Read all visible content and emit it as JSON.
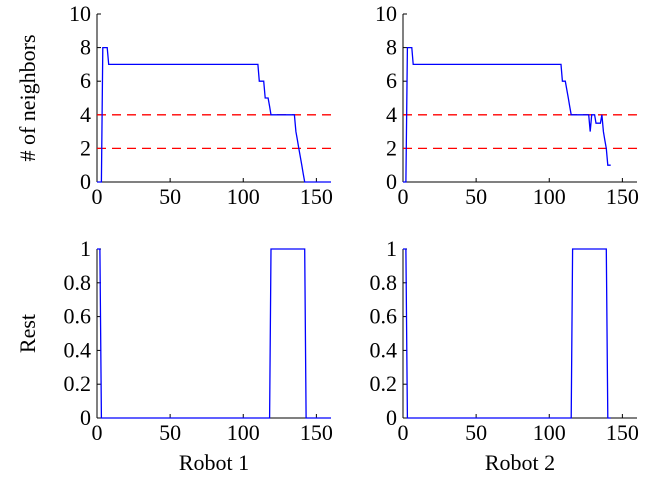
{
  "colors": {
    "series": "#0000ff",
    "reference": "#ff0000",
    "axis": "#000000"
  },
  "chart_data": [
    {
      "type": "line",
      "panel": "top-left",
      "xlabel": "",
      "ylabel": "# of neighbors",
      "xlim": [
        0,
        160
      ],
      "ylim": [
        0,
        10
      ],
      "xticks": [
        0,
        50,
        100,
        150
      ],
      "yticks": [
        0,
        2,
        4,
        6,
        8,
        10
      ],
      "x": [
        0,
        3,
        4,
        7,
        8,
        110,
        111,
        114,
        115,
        117,
        118,
        119,
        120,
        135,
        136,
        137,
        138,
        139,
        140,
        141,
        142,
        143,
        160
      ],
      "series": [
        {
          "values": [
            0,
            0,
            8,
            8,
            7,
            7,
            6,
            6,
            5,
            5,
            4.5,
            4,
            4,
            4,
            3,
            2.5,
            2,
            1.5,
            1,
            0.5,
            0,
            0,
            0
          ]
        }
      ],
      "reference_lines": [
        4,
        2
      ]
    },
    {
      "type": "line",
      "panel": "top-right",
      "xlabel": "",
      "ylabel": "",
      "xlim": [
        0,
        160
      ],
      "ylim": [
        0,
        10
      ],
      "xticks": [
        0,
        50,
        100,
        150
      ],
      "yticks": [
        0,
        2,
        4,
        6,
        8,
        10
      ],
      "x": [
        0,
        2,
        3,
        6,
        7,
        108,
        109,
        111,
        112,
        113,
        114,
        115,
        116,
        127,
        128,
        129,
        131,
        132,
        135,
        136,
        137,
        138,
        139,
        140,
        142
      ],
      "series": [
        {
          "values": [
            0,
            0,
            8,
            8,
            7,
            7,
            6,
            6,
            5.5,
            5,
            4.5,
            4,
            4,
            4,
            3,
            4,
            4,
            3.5,
            3.5,
            4,
            3,
            2.5,
            2,
            1,
            1
          ]
        }
      ],
      "reference_lines": [
        4,
        2
      ]
    },
    {
      "type": "line",
      "panel": "bottom-left",
      "xlabel": "Robot 1",
      "ylabel": "Rest",
      "xlim": [
        0,
        160
      ],
      "ylim": [
        0,
        1
      ],
      "xticks": [
        0,
        50,
        100,
        150
      ],
      "yticks": [
        0,
        0.2,
        0.4,
        0.6,
        0.8,
        1
      ],
      "x": [
        0,
        2,
        3,
        118,
        119,
        142,
        143,
        160
      ],
      "series": [
        {
          "values": [
            1,
            1,
            0,
            0,
            1,
            1,
            0,
            0
          ]
        }
      ],
      "reference_lines": []
    },
    {
      "type": "line",
      "panel": "bottom-right",
      "xlabel": "Robot 2",
      "ylabel": "",
      "xlim": [
        0,
        160
      ],
      "ylim": [
        0,
        1
      ],
      "xticks": [
        0,
        50,
        100,
        150
      ],
      "yticks": [
        0,
        0.2,
        0.4,
        0.6,
        0.8,
        1
      ],
      "x": [
        0,
        2,
        3,
        115,
        116,
        139,
        140,
        142
      ],
      "series": [
        {
          "values": [
            1,
            1,
            0,
            0,
            1,
            1,
            0,
            0
          ]
        }
      ],
      "reference_lines": []
    }
  ]
}
